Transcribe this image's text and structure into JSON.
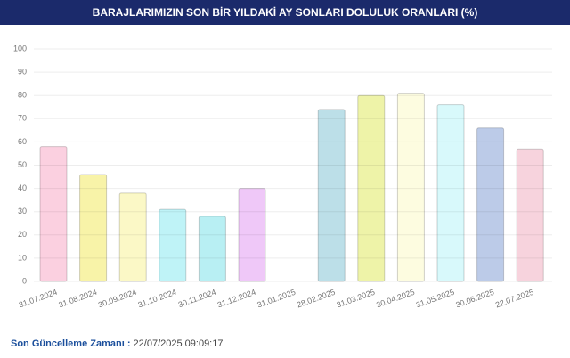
{
  "chart_data": {
    "type": "bar",
    "title": "BARAJLARIMIZIN SON BİR YILDAKİ AY SONLARI DOLULUK ORANLARI (%)",
    "categories": [
      "31.07.2024",
      "31.08.2024",
      "30.09.2024",
      "31.10.2024",
      "30.11.2024",
      "31.12.2024",
      "31.01.2025",
      "28.02.2025",
      "31.03.2025",
      "30.04.2025",
      "31.05.2025",
      "30.06.2025",
      "22.07.2025"
    ],
    "values": [
      58,
      46,
      38,
      31,
      28,
      40,
      null,
      74,
      80,
      81,
      76,
      66,
      57
    ],
    "colors": [
      "#fbd0e0",
      "#f8f3a8",
      "#fbf8c6",
      "#bff3f7",
      "#b8eff3",
      "#efc8f8",
      null,
      "#bcdfe8",
      "#eef3a8",
      "#fdfce0",
      "#d8f9fb",
      "#bccbe8",
      "#f7d3dd"
    ],
    "ylim": [
      0,
      100
    ],
    "yticks": [
      0,
      10,
      20,
      30,
      40,
      50,
      60,
      70,
      80,
      90,
      100
    ],
    "grid": true
  },
  "footer": {
    "label": "Son Güncelleme Zamanı :",
    "value": "22/07/2025 09:09:17"
  }
}
